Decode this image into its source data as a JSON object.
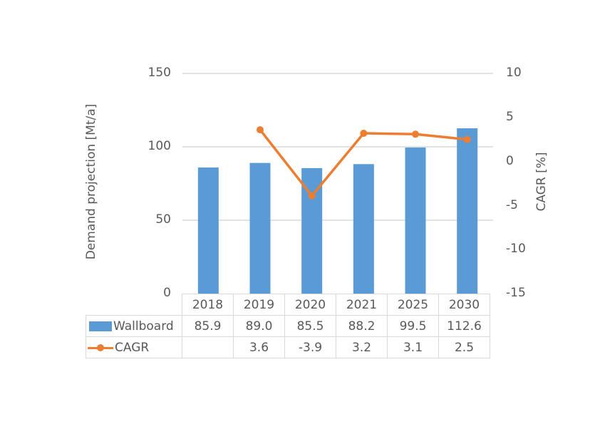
{
  "chart_data": {
    "type": "bar",
    "title": "",
    "categories": [
      "2018",
      "2019",
      "2020",
      "2021",
      "2025",
      "2030"
    ],
    "series": [
      {
        "name": "Wallboard",
        "type": "bar",
        "axis": "left",
        "color": "#5b9bd5",
        "values": [
          85.9,
          89.0,
          85.5,
          88.2,
          99.5,
          112.6
        ]
      },
      {
        "name": "CAGR",
        "type": "line",
        "axis": "right",
        "color": "#ed7d31",
        "values": [
          null,
          3.6,
          -3.9,
          3.2,
          3.1,
          2.5
        ]
      }
    ],
    "xlabel": "",
    "ylabel": "Demand projection [Mt/a]",
    "ylabel_right": "CAGR [%]",
    "ylim": [
      0,
      150
    ],
    "ylim_right": [
      -15,
      10
    ],
    "yticks": [
      "0",
      "50",
      "100",
      "150"
    ],
    "yticks_right": [
      "-15",
      "-10",
      "-5",
      "0",
      "5",
      "10"
    ],
    "grid": true,
    "legend_position": "data-table",
    "data_table": {
      "rows": [
        {
          "label": "Wallboard",
          "cells": [
            "85.9",
            "89.0",
            "85.5",
            "88.2",
            "99.5",
            "112.6"
          ]
        },
        {
          "label": "CAGR",
          "cells": [
            "",
            "3.6",
            "-3.9",
            "3.2",
            "3.1",
            "2.5"
          ]
        }
      ]
    }
  }
}
